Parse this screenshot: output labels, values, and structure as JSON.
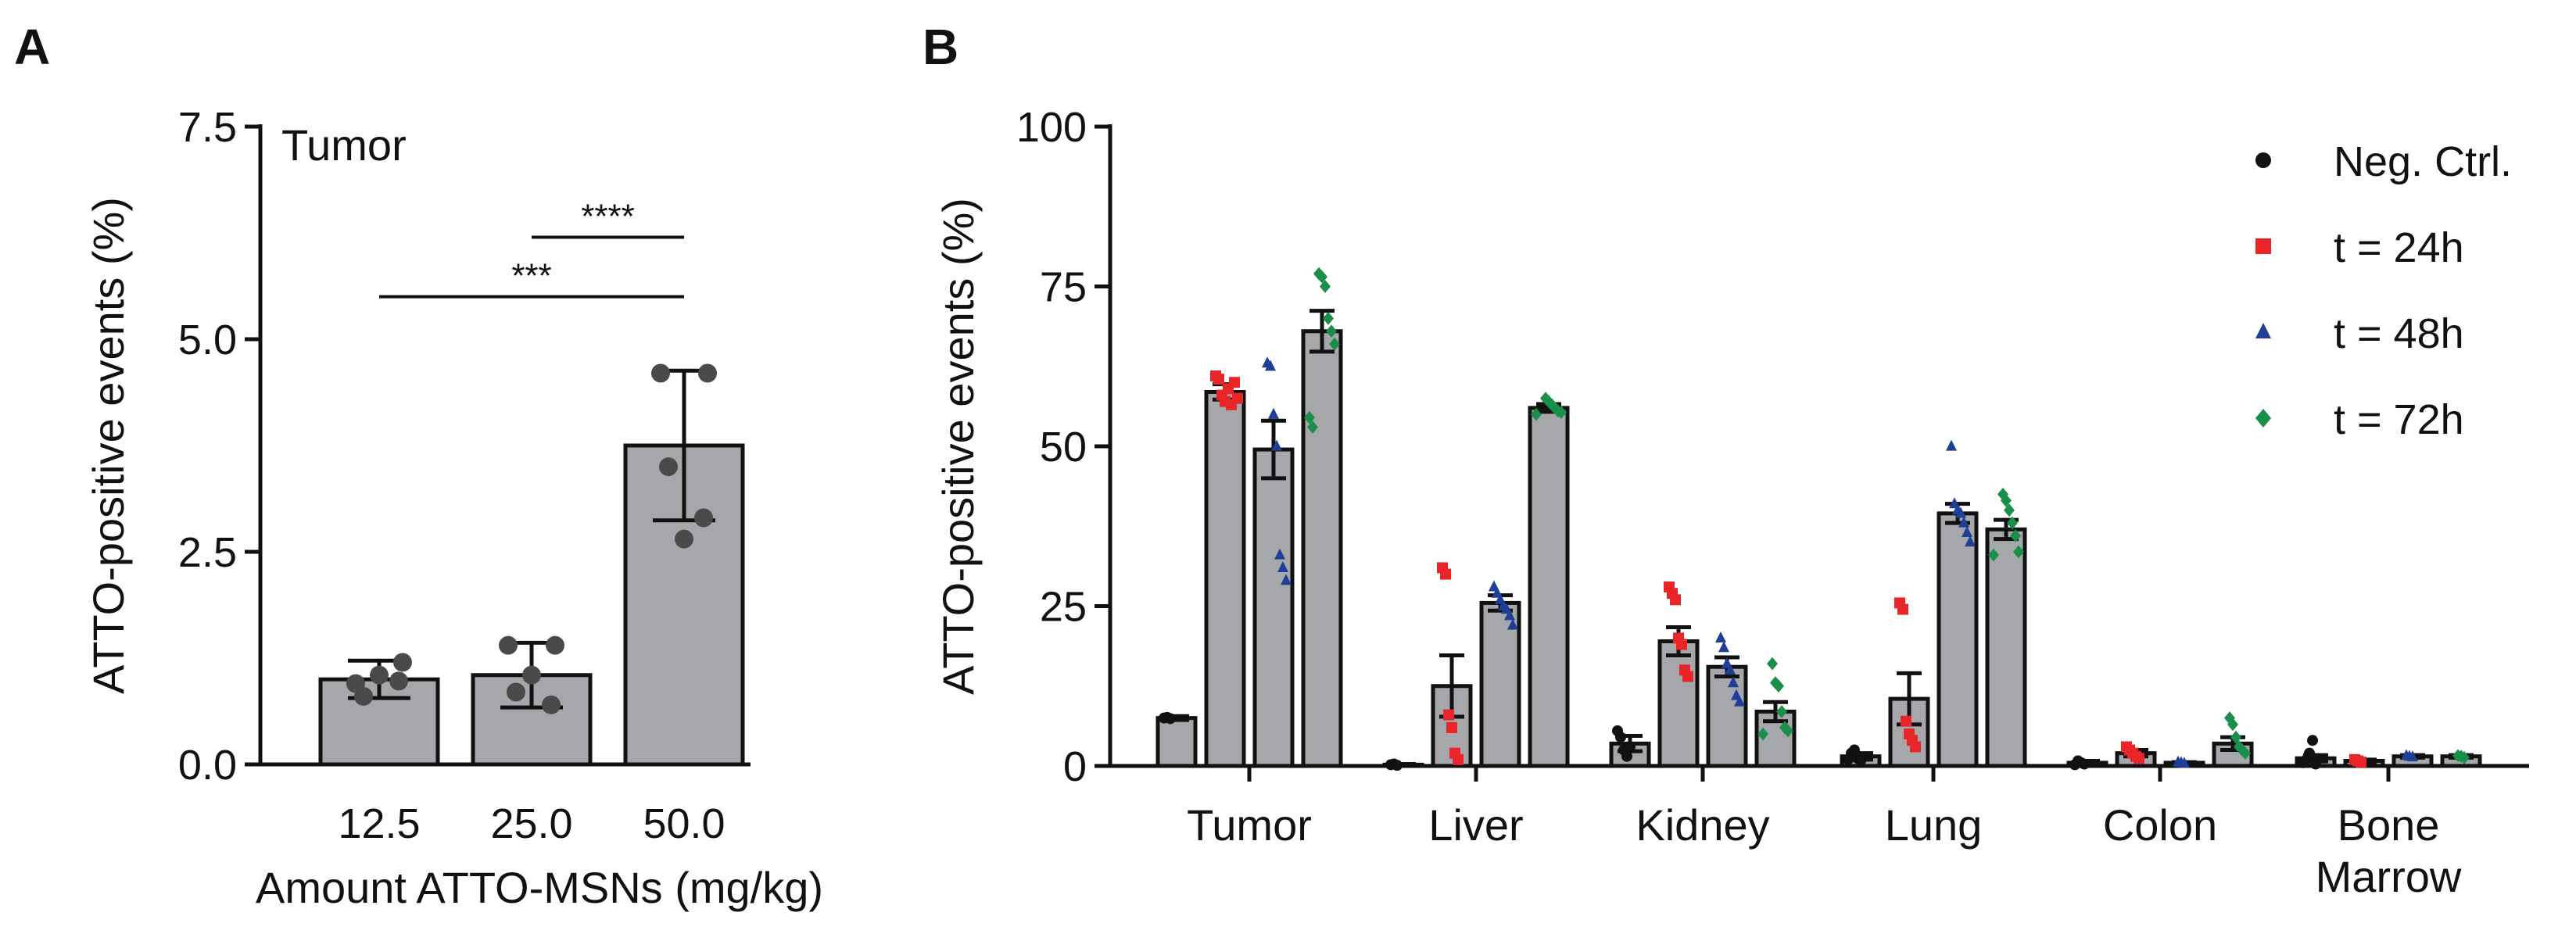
{
  "chart_data": [
    {
      "panel": "A",
      "type": "bar",
      "title": "Tumor",
      "xlabel": "Amount ATTO-MSNs (mg/kg)",
      "ylabel": "ATTO-positive events (%)",
      "ylim": [
        0,
        7.5
      ],
      "yticks": [
        "0.0",
        "2.5",
        "5.0",
        "7.5"
      ],
      "categories": [
        "12.5",
        "25.0",
        "50.0"
      ],
      "values": [
        1.0,
        1.05,
        3.75
      ],
      "sd": [
        0.22,
        0.38,
        0.88
      ],
      "points": [
        [
          0.95,
          1.2,
          0.8,
          0.98,
          1.05
        ],
        [
          1.4,
          1.4,
          0.85,
          0.7,
          1.05
        ],
        [
          4.6,
          4.6,
          3.5,
          2.9,
          2.65
        ]
      ],
      "significance": [
        {
          "label": "***",
          "from": 0,
          "to": 2,
          "y": 5.5
        },
        {
          "label": "****",
          "from": 1,
          "to": 2,
          "y": 6.2
        }
      ]
    },
    {
      "panel": "B",
      "type": "bar",
      "ylabel": "ATTO-positive events (%)",
      "ylim": [
        0,
        100
      ],
      "yticks": [
        "0",
        "25",
        "50",
        "75",
        "100"
      ],
      "categories": [
        "Tumor",
        "Liver",
        "Kidney",
        "Lung",
        "Colon",
        "Bone Marrow"
      ],
      "series": [
        {
          "name": "Neg. Ctrl.",
          "color": "#111111",
          "marker": "circle",
          "values": [
            7.5,
            0.2,
            3.5,
            1.5,
            0.5,
            1.2
          ],
          "sem": [
            0.3,
            0.1,
            1.2,
            0.5,
            0.3,
            0.5
          ],
          "points": [
            [
              7.5,
              7.6,
              7.4
            ],
            [
              0.2,
              0.3,
              0.1
            ],
            [
              5.5,
              4.5,
              2.5,
              1.5,
              3.0
            ],
            [
              1.0,
              2.0,
              2.5,
              1.2,
              0.8
            ],
            [
              0.2,
              0.8,
              0.5,
              0.3
            ],
            [
              0.5,
              1.0,
              2.0,
              4.0,
              0.3
            ]
          ]
        },
        {
          "name": "t = 24h",
          "color": "#e8262a",
          "marker": "square",
          "values": [
            58.5,
            12.5,
            19.5,
            10.5,
            2.0,
            0.8
          ],
          "sem": [
            1.2,
            4.8,
            2.2,
            4.0,
            0.5,
            0.2
          ],
          "points": [
            [
              61,
              60.5,
              58,
              57,
              59,
              56.5,
              60,
              57.5
            ],
            [
              31,
              30,
              8,
              6,
              2,
              1
            ],
            [
              28,
              27,
              26,
              20,
              19,
              15,
              14
            ],
            [
              25.5,
              24.5,
              7,
              5,
              4,
              3
            ],
            [
              3,
              2.5,
              2,
              1.5,
              1.2
            ],
            [
              1,
              0.8,
              0.6
            ]
          ]
        },
        {
          "name": "t = 48h",
          "color": "#1f3e96",
          "marker": "triangle",
          "values": [
            49.5,
            25.5,
            15.5,
            39.5,
            0.5,
            1.5
          ],
          "sem": [
            4.5,
            1.2,
            1.5,
            1.5,
            0.1,
            0.2
          ],
          "points": [
            [
              63,
              62.5,
              55,
              50,
              33,
              31,
              29
            ],
            [
              28,
              27,
              26,
              25,
              24.5,
              23.5,
              22
            ],
            [
              20,
              18.5,
              16,
              15,
              13,
              11,
              10
            ],
            [
              50,
              41,
              40,
              39.5,
              38,
              36.5,
              35
            ],
            [
              0.6,
              0.5,
              0.4
            ],
            [
              1.6,
              1.5,
              1.4
            ]
          ]
        },
        {
          "name": "t = 72h",
          "color": "#1a8f4a",
          "marker": "diamond",
          "values": [
            68.0,
            56.0,
            8.5,
            37.0,
            3.5,
            1.5
          ],
          "sem": [
            3.2,
            0.6,
            1.5,
            1.5,
            1.0,
            0.2
          ],
          "points": [
            [
              77,
              76.5,
              75,
              70,
              68,
              66,
              54.5,
              53
            ],
            [
              57.5,
              57,
              56.5,
              56,
              55.5,
              55.3,
              55
            ],
            [
              16,
              13,
              12.5,
              8.5,
              6,
              5.5,
              5
            ],
            [
              42.5,
              41.5,
              40,
              38,
              36,
              33.5,
              33
            ],
            [
              7.5,
              6.5,
              4.5,
              3,
              2.5,
              2
            ],
            [
              1.6,
              1.5,
              1.3
            ]
          ]
        }
      ]
    }
  ],
  "labels": {
    "panelA": "A",
    "panelB": "B"
  }
}
